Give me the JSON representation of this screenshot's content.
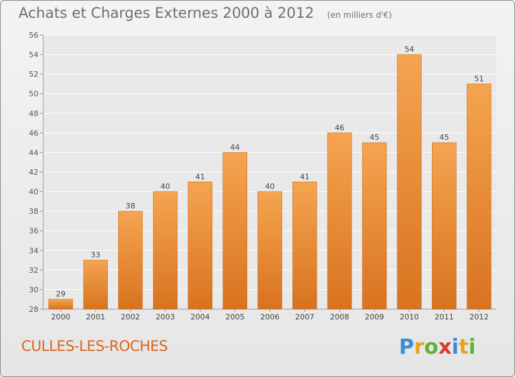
{
  "chart_data": {
    "type": "bar",
    "title": "Achats et Charges Externes 2000 à 2012",
    "subtitle": "(en milliers d'€)",
    "xlabel": "",
    "ylabel": "",
    "categories": [
      "2000",
      "2001",
      "2002",
      "2003",
      "2004",
      "2005",
      "2006",
      "2007",
      "2008",
      "2009",
      "2010",
      "2011",
      "2012"
    ],
    "values": [
      29,
      33,
      38,
      40,
      41,
      44,
      40,
      41,
      46,
      45,
      54,
      45,
      51
    ],
    "value_labels": [
      "29",
      "33",
      "38",
      "40",
      "41",
      "44",
      "40",
      "41",
      "46",
      "45",
      "54",
      "45",
      "51"
    ],
    "ylim": [
      28,
      56
    ],
    "yticks": [
      "28",
      "30",
      "32",
      "34",
      "36",
      "38",
      "40",
      "42",
      "44",
      "46",
      "48",
      "50",
      "52",
      "54",
      "56"
    ],
    "grid": true,
    "legend": "none",
    "bar_color_top": "#f5a450",
    "bar_color_bottom": "#d8731f"
  },
  "footer": {
    "commune": "CULLES-LES-ROCHES",
    "logo_letters": [
      "P",
      "r",
      "o",
      "x",
      "i",
      "t",
      "i"
    ]
  }
}
